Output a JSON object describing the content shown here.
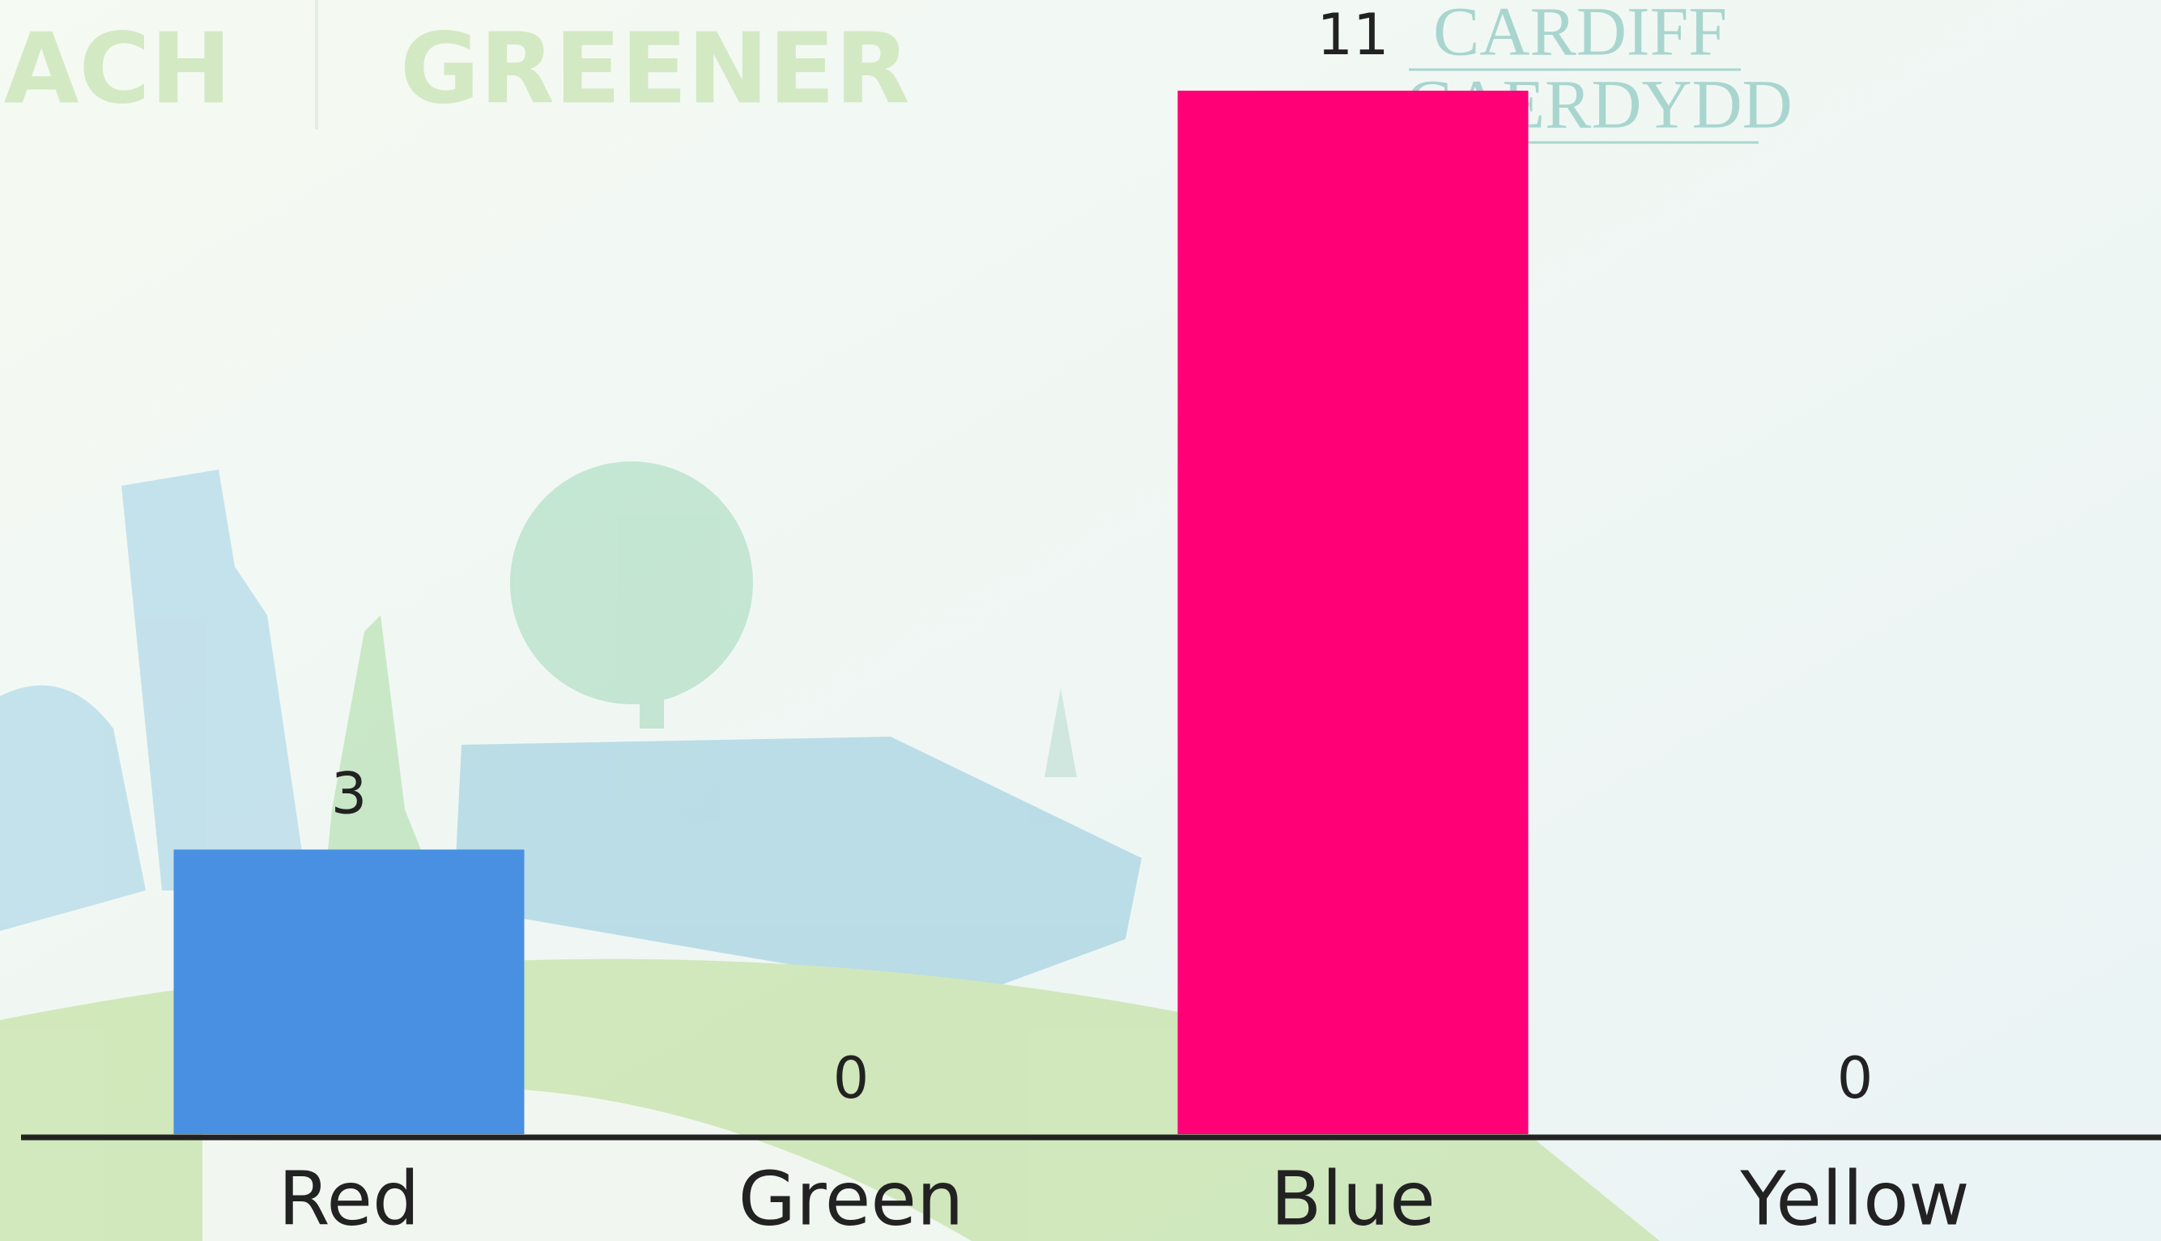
{
  "background": {
    "texts": [
      "ACH",
      "GREENER",
      "CARDIFF",
      "CAERDYDD"
    ]
  },
  "chart_data": {
    "type": "bar",
    "categories": [
      "Red",
      "Green",
      "Blue",
      "Yellow"
    ],
    "values": [
      3,
      0,
      11,
      0
    ],
    "colors": [
      "#4a90e2",
      null,
      "#ff0077",
      null
    ],
    "ylim": [
      0,
      11
    ]
  }
}
